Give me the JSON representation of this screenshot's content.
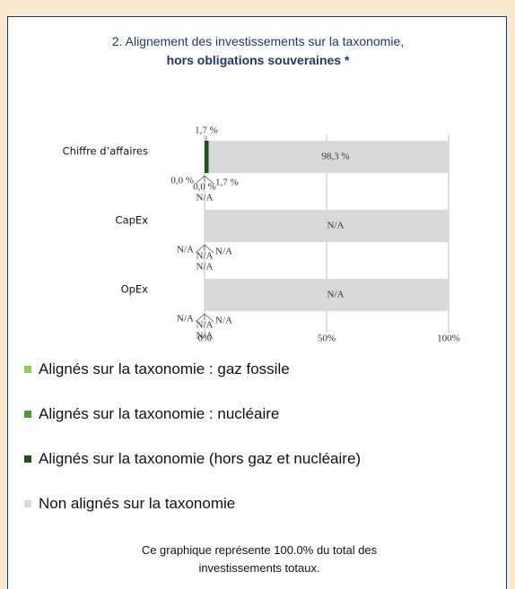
{
  "chart_data": {
    "type": "stacked-barh",
    "title": "2. Alignement des investissements sur la taxonomie,",
    "subtitle": "hors obligations souveraines *",
    "categories": [
      "Chiffre d’affaires",
      "CapEx",
      "OpEx"
    ],
    "series": [
      {
        "name": "Alignés sur la taxonomie : gaz fossile",
        "color": "#92d050",
        "values": [
          0,
          null,
          null
        ],
        "value_labels": [
          "0,0 %",
          "N/A",
          "N/A"
        ]
      },
      {
        "name": "Alignés sur la taxonomie : nucléaire",
        "color": "#4e9a36",
        "values": [
          0,
          null,
          null
        ],
        "value_labels": [
          "0,0 %",
          "N/A",
          "N/A"
        ]
      },
      {
        "name": "Alignés sur la taxonomie (hors gaz et nucléaire)",
        "color": "#1e4d1e",
        "values": [
          1.7,
          null,
          null
        ],
        "value_labels": [
          "1,7 %",
          "N/A",
          "N/A"
        ]
      },
      {
        "name": "Non alignés sur la taxonomie",
        "color": "#d9d9d9",
        "values": [
          98.3,
          100,
          100
        ],
        "value_labels": [
          "98,3 %",
          "N/A",
          "N/A"
        ]
      }
    ],
    "annotations": [
      {
        "category": 0,
        "position": "top",
        "text": "1,7 %"
      },
      {
        "category": 0,
        "position": "bottom",
        "text": "N/A"
      },
      {
        "category": 1,
        "position": "bottom",
        "text": "N/A"
      },
      {
        "category": 2,
        "position": "bottom",
        "text": "N/A"
      }
    ],
    "xlim": [
      0,
      100
    ],
    "xticks": [
      {
        "value": 0,
        "label": "0%"
      },
      {
        "value": 50,
        "label": "50%"
      },
      {
        "value": 100,
        "label": "100%"
      }
    ],
    "grid": true,
    "footnote": "Ce graphique représente 100.0% du total des investissements totaux."
  }
}
